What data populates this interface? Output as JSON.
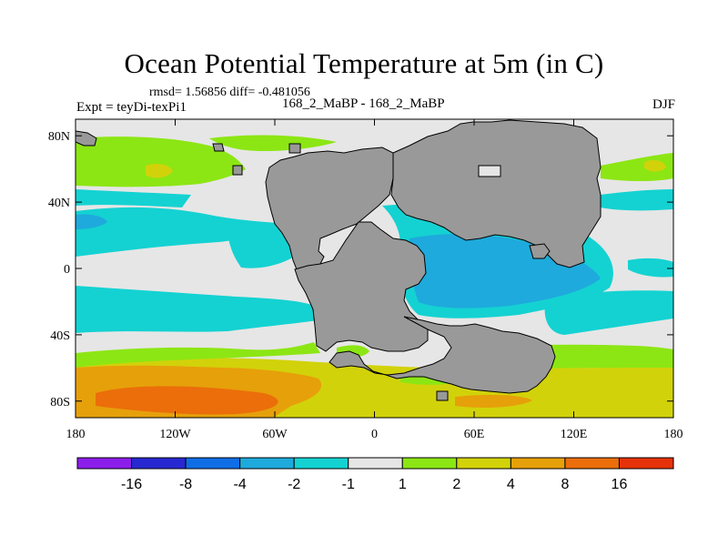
{
  "title": "Ocean Potential Temperature at 5m (in C)",
  "stats": "rmsd= 1.56856  diff= -0.481056",
  "experiment": "Expt = teyDi-texPi1",
  "runs": "168_2_MaBP - 168_2_MaBP",
  "season": "DJF",
  "axes": {
    "x_ticks": [
      {
        "value": -180,
        "label": "180"
      },
      {
        "value": -120,
        "label": "120W"
      },
      {
        "value": -60,
        "label": "60W"
      },
      {
        "value": 0,
        "label": "0"
      },
      {
        "value": 60,
        "label": "60E"
      },
      {
        "value": 120,
        "label": "120E"
      },
      {
        "value": 180,
        "label": "180"
      }
    ],
    "y_ticks": [
      {
        "value": 80,
        "label": "80N"
      },
      {
        "value": 40,
        "label": "40N"
      },
      {
        "value": 0,
        "label": "0"
      },
      {
        "value": -40,
        "label": "40S"
      },
      {
        "value": -80,
        "label": "80S"
      }
    ],
    "lon_range": [
      -180,
      180
    ],
    "lat_range": [
      -90,
      90
    ]
  },
  "colorbar": {
    "colors": [
      "#8c1eeb",
      "#2828d2",
      "#0f6ee6",
      "#1eaadc",
      "#14d2d2",
      "#e6e6e6",
      "#8ce614",
      "#d2d20a",
      "#e6a00a",
      "#eb6e0a",
      "#e6320a"
    ],
    "labels": [
      "-16",
      "-8",
      "-4",
      "-2",
      "-1",
      "1",
      "2",
      "4",
      "8",
      "16"
    ]
  },
  "land_color": "#999999",
  "legend": {
    "c_neg16": "#8c1eeb",
    "c_neg8": "#2828d2",
    "c_neg4": "#0f6ee6",
    "c_neg2": "#1eaadc",
    "c_neg1": "#14d2d2",
    "c_zero": "#e6e6e6",
    "c_pos1": "#8ce614",
    "c_pos2": "#d2d20a",
    "c_pos4": "#e6a00a",
    "c_pos8": "#eb6e0a",
    "c_pos16": "#e6320a"
  }
}
